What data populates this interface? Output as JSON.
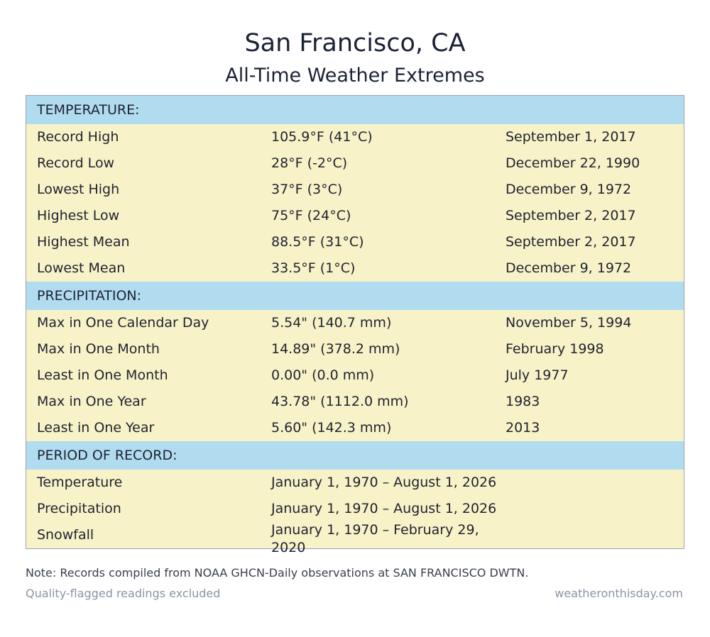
{
  "header": {
    "title": "San Francisco, CA",
    "subtitle": "All-Time Weather Extremes"
  },
  "colors": {
    "section_header_bg": "#b1dcf0",
    "row_bg": "#f8f2c8",
    "footer_text": "#8a94a6"
  },
  "sections": {
    "temperature": {
      "heading": "TEMPERATURE:",
      "rows": [
        {
          "label": "Record High",
          "value": "105.9°F (41°C)",
          "date": "September 1, 2017"
        },
        {
          "label": "Record Low",
          "value": "28°F (-2°C)",
          "date": "December 22, 1990"
        },
        {
          "label": "Lowest High",
          "value": "37°F (3°C)",
          "date": "December 9, 1972"
        },
        {
          "label": "Highest Low",
          "value": "75°F (24°C)",
          "date": "September 2, 2017"
        },
        {
          "label": "Highest Mean",
          "value": "88.5°F (31°C)",
          "date": "September 2, 2017"
        },
        {
          "label": "Lowest Mean",
          "value": "33.5°F (1°C)",
          "date": "December 9, 1972"
        }
      ]
    },
    "precipitation": {
      "heading": "PRECIPITATION:",
      "rows": [
        {
          "label": "Max in One Calendar Day",
          "value": "5.54\" (140.7 mm)",
          "date": "November 5, 1994"
        },
        {
          "label": "Max in One Month",
          "value": "14.89\" (378.2 mm)",
          "date": "February 1998"
        },
        {
          "label": "Least in One Month",
          "value": "0.00\" (0.0 mm)",
          "date": "July 1977"
        },
        {
          "label": "Max in One Year",
          "value": "43.78\" (1112.0 mm)",
          "date": "1983"
        },
        {
          "label": "Least in One Year",
          "value": "5.60\" (142.3 mm)",
          "date": "2013"
        }
      ]
    },
    "period": {
      "heading": "PERIOD OF RECORD:",
      "rows": [
        {
          "label": "Temperature",
          "value": "January 1, 1970 – August 1, 2026"
        },
        {
          "label": "Precipitation",
          "value": "January 1, 1970 – August 1, 2026"
        },
        {
          "label": "Snowfall",
          "value": "January 1, 1970 – February 29, 2020"
        }
      ]
    }
  },
  "footer": {
    "note": "Note: Records compiled from NOAA GHCN-Daily observations at SAN FRANCISCO DWTN.",
    "quality": "Quality-flagged readings excluded",
    "source": "weatheronthisday.com"
  }
}
